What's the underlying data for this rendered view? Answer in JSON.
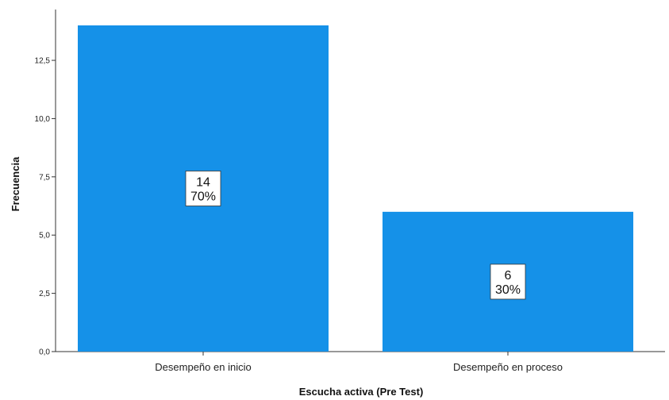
{
  "chart_data": {
    "type": "bar",
    "categories": [
      "Desempeño en inicio",
      "Desempeño en proceso"
    ],
    "values": [
      14,
      6
    ],
    "percent_labels": [
      "70%",
      "30%"
    ],
    "xlabel": "Escucha activa (Pre Test)",
    "ylabel": "Frecuencia",
    "ylim": [
      0,
      14
    ],
    "yticks": [
      "0,0",
      "2,5",
      "5,0",
      "7,5",
      "10,0",
      "12,5"
    ],
    "ytick_values": [
      0,
      2.5,
      5,
      7.5,
      10,
      12.5
    ],
    "grid": false,
    "bar_color": "#1591e8"
  }
}
